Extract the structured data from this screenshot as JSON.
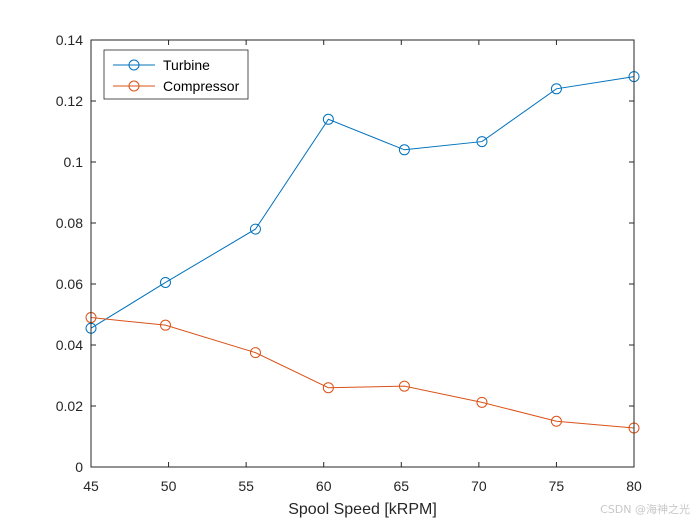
{
  "chart_data": {
    "type": "line",
    "title": "",
    "xlabel": "Spool Speed [kRPM]",
    "ylabel": "",
    "xlim": [
      45,
      80
    ],
    "ylim": [
      0,
      0.14
    ],
    "x_ticks": [
      45,
      50,
      55,
      60,
      65,
      70,
      75,
      80
    ],
    "x_tick_labels": [
      "45",
      "50",
      "55",
      "60",
      "65",
      "70",
      "75",
      "80"
    ],
    "y_ticks": [
      0,
      0.02,
      0.04,
      0.06,
      0.08,
      0.1,
      0.12,
      0.14
    ],
    "y_tick_labels": [
      "0",
      "0.02",
      "0.04",
      "0.06",
      "0.08",
      "0.1",
      "0.12",
      "0.14"
    ],
    "grid": false,
    "legend_position": "top-left",
    "series": [
      {
        "name": "Turbine",
        "color": "#0072BD",
        "marker": "circle",
        "x": [
          45,
          49.8,
          55.6,
          60.3,
          65.2,
          70.2,
          75.0,
          80.0
        ],
        "y": [
          0.0455,
          0.0605,
          0.078,
          0.114,
          0.104,
          0.1067,
          0.124,
          0.128
        ]
      },
      {
        "name": "Compressor",
        "color": "#D95319",
        "marker": "circle",
        "x": [
          45,
          49.8,
          55.6,
          60.3,
          65.2,
          70.2,
          75.0,
          80.0
        ],
        "y": [
          0.049,
          0.0465,
          0.0375,
          0.026,
          0.0265,
          0.0212,
          0.015,
          0.0128
        ]
      }
    ]
  },
  "watermark": "CSDN @海神之光"
}
